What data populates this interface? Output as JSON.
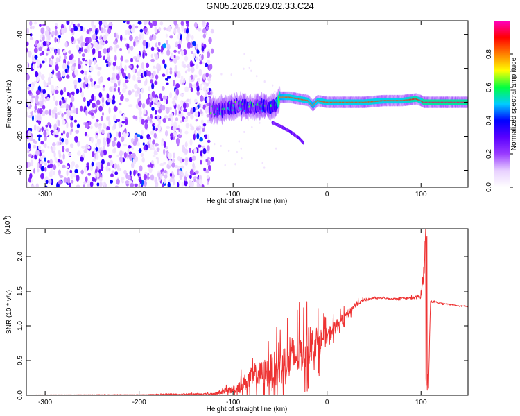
{
  "page": {
    "title": "GN05.2026.029.02.33.C24"
  },
  "chart_data": [
    {
      "type": "heatmap",
      "xlabel": "Height of straight line (km)",
      "ylabel": "Frequency (Hz)",
      "xlim": [
        -320,
        150
      ],
      "ylim": [
        -50,
        48
      ],
      "xticks": [
        -300,
        -200,
        -100,
        0,
        100
      ],
      "yticks": [
        -40,
        -20,
        0,
        20,
        40
      ],
      "grid": false,
      "colorbar": {
        "label": "Normalized spectral amplitude",
        "range": [
          0,
          1
        ],
        "ticks": [
          0.0,
          0.2,
          0.4,
          0.6,
          0.8
        ],
        "tick_labels": [
          "0.0",
          "0.2",
          "0.4",
          "0.6",
          "0.8"
        ],
        "colormap": [
          "#ffffff",
          "#e8d0ff",
          "#9a3cff",
          "#5a00ff",
          "#0000ff",
          "#00ccff",
          "#00ff40",
          "#ffff00",
          "#ff8000",
          "#ff0000",
          "#ff00c0"
        ]
      },
      "noise_region": {
        "x": [
          -320,
          -122
        ],
        "y": [
          -50,
          48
        ],
        "amplitude": 0.2
      },
      "signal_ridge": {
        "x": [
          -125,
          -110,
          -100,
          -90,
          -80,
          -70,
          -62,
          -55,
          -50,
          -40,
          -30,
          -20,
          -15,
          -10,
          0,
          20,
          40,
          60,
          80,
          95,
          100,
          103,
          110,
          130,
          150
        ],
        "freq": [
          -4,
          -4,
          -3,
          -2,
          -3,
          -2,
          -3,
          -2,
          3,
          3,
          2,
          1,
          -2,
          1,
          0,
          0,
          0,
          1,
          1,
          2,
          1,
          0,
          0,
          0,
          0
        ],
        "amplitude": [
          0.25,
          0.25,
          0.3,
          0.3,
          0.3,
          0.3,
          0.35,
          0.4,
          0.8,
          0.85,
          0.85,
          0.85,
          0.8,
          0.85,
          0.85,
          0.85,
          0.85,
          0.85,
          0.85,
          0.9,
          0.85,
          0.95,
          0.95,
          0.95,
          0.95
        ]
      },
      "branch": {
        "x": [
          -58,
          -50,
          -40,
          -30,
          -25
        ],
        "freq": [
          -12,
          -14,
          -17,
          -21,
          -24
        ],
        "amplitude": 0.2
      }
    },
    {
      "type": "line",
      "xlabel": "Height of straight line (km)",
      "ylabel": "SNR (10 * v/v)",
      "y_multiplier": "(x10",
      "y_multiplier_exp": "4",
      "y_multiplier_close": ")",
      "xlim": [
        -320,
        150
      ],
      "ylim": [
        0,
        24000
      ],
      "xticks": [
        -300,
        -200,
        -100,
        0,
        100
      ],
      "yticks": [
        0,
        5000,
        10000,
        15000,
        20000
      ],
      "ytick_labels": [
        "0.0",
        "0.5",
        "1.0",
        "1.5",
        "2.0"
      ],
      "grid": false,
      "color": "#ee3333",
      "series": [
        {
          "x": [
            -320,
            -200,
            -120,
            -110,
            -100,
            -90,
            -80,
            -70,
            -60,
            -50,
            -40,
            -30,
            -20,
            -10,
            0,
            10,
            20,
            30,
            40,
            50,
            60,
            70,
            80,
            90,
            95,
            100,
            103,
            106,
            108,
            110,
            120,
            130,
            140,
            150
          ],
          "values": [
            50,
            70,
            200,
            600,
            800,
            1600,
            2500,
            3000,
            3500,
            4000,
            5000,
            6000,
            7000,
            7500,
            8500,
            10000,
            11500,
            13000,
            13800,
            14000,
            14000,
            13900,
            14000,
            14000,
            14100,
            14300,
            18000,
            22000,
            1000,
            13500,
            13300,
            13100,
            12900,
            12800
          ],
          "spread": [
            0,
            50,
            200,
            600,
            900,
            1800,
            2600,
            3200,
            4000,
            4800,
            5500,
            5000,
            4500,
            3500,
            2000,
            1500,
            1000,
            600,
            300,
            150,
            150,
            150,
            200,
            300,
            400,
            600,
            2000,
            3000,
            800,
            300,
            150,
            100,
            80,
            60
          ]
        }
      ]
    }
  ]
}
